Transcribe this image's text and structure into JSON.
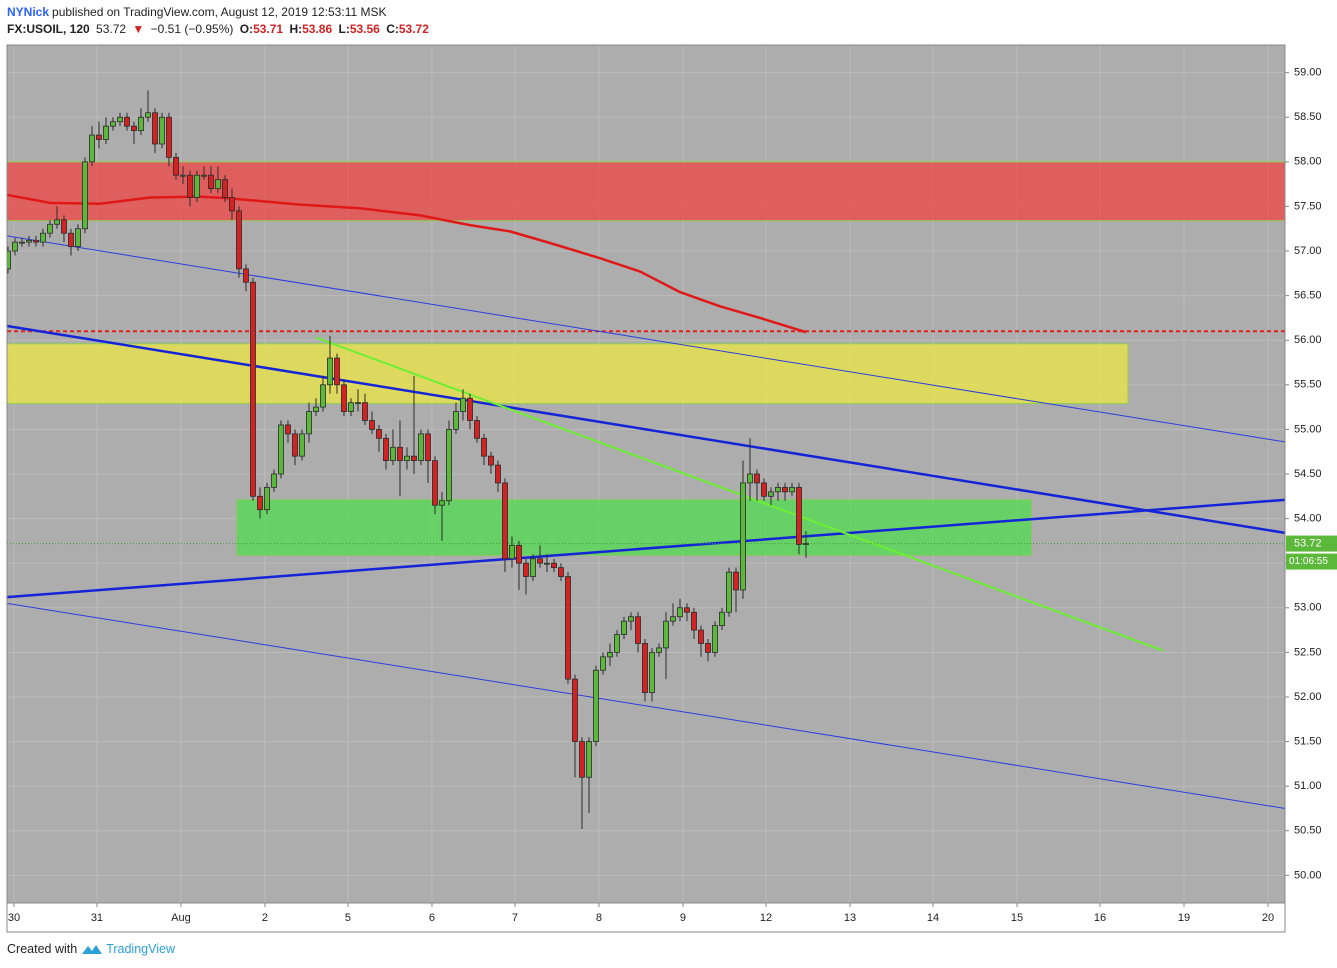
{
  "header": {
    "author": "NYNick",
    "published": "published on TradingView.com, August 12, 2019 12:53:11 MSK",
    "symbol": "FX:USOIL, 120",
    "last": "53.72",
    "arrow": "▼",
    "change": "−0.51 (−0.95%)",
    "o_label": "O:",
    "o": "53.71",
    "h_label": "H:",
    "h": "53.86",
    "l_label": "L:",
    "l": "53.56",
    "c_label": "C:",
    "c": "53.72"
  },
  "footer": {
    "created": "Created with",
    "brand": "TradingView"
  },
  "chart_data": {
    "type": "candlestick",
    "x": [
      0,
      1,
      2,
      3,
      4,
      5,
      6,
      7,
      8,
      9,
      10,
      11,
      12,
      13,
      14,
      15,
      16,
      17,
      18,
      19,
      20,
      21,
      22,
      23,
      24,
      25,
      26,
      27,
      28,
      29,
      30,
      31,
      32,
      33,
      34,
      35,
      36,
      37,
      38,
      39,
      40,
      41,
      42,
      43,
      44,
      45,
      46,
      47,
      48,
      49,
      50,
      51,
      52,
      53,
      54,
      55,
      56,
      57,
      58,
      59,
      60,
      61,
      62,
      63,
      64,
      65,
      66,
      67,
      68,
      69,
      70,
      71,
      72,
      73,
      74,
      75,
      76,
      77,
      78,
      79,
      80,
      81,
      82,
      83,
      84,
      85,
      86,
      87,
      88,
      89,
      90,
      91,
      92,
      93,
      94,
      95,
      96,
      97,
      98,
      99,
      100,
      101,
      102,
      103,
      104,
      105,
      106,
      107,
      108,
      109,
      110,
      111,
      112,
      113,
      114
    ],
    "open": [
      56.8,
      57.0,
      57.1,
      57.1,
      57.12,
      57.1,
      57.2,
      57.3,
      57.35,
      57.2,
      57.05,
      57.25,
      58.0,
      58.3,
      58.25,
      58.4,
      58.45,
      58.5,
      58.4,
      58.35,
      58.5,
      58.55,
      58.2,
      58.5,
      58.05,
      57.85,
      57.85,
      57.6,
      57.85,
      57.85,
      57.7,
      57.8,
      57.6,
      57.45,
      56.8,
      56.65,
      54.25,
      54.1,
      54.35,
      54.5,
      55.05,
      54.95,
      54.7,
      54.95,
      55.2,
      55.25,
      55.5,
      55.8,
      55.5,
      55.2,
      55.3,
      55.3,
      55.1,
      55.0,
      54.9,
      54.65,
      54.8,
      54.65,
      54.7,
      54.65,
      54.95,
      54.65,
      54.15,
      54.2,
      55.0,
      55.2,
      55.35,
      55.1,
      54.9,
      54.7,
      54.6,
      54.4,
      53.55,
      53.7,
      53.5,
      53.35,
      53.55,
      53.5,
      53.5,
      53.45,
      53.35,
      52.2,
      51.5,
      51.1,
      51.5,
      52.3,
      52.45,
      52.5,
      52.7,
      52.85,
      52.9,
      52.6,
      52.05,
      52.5,
      52.55,
      52.85,
      52.9,
      53.0,
      52.95,
      52.75,
      52.6,
      52.5,
      52.8,
      52.95,
      53.4,
      53.2,
      54.4,
      54.5,
      54.4,
      54.25,
      54.3,
      54.35,
      54.3,
      54.35,
      53.71
    ],
    "high": [
      57.05,
      57.15,
      57.15,
      57.17,
      57.17,
      57.25,
      57.35,
      57.5,
      57.4,
      57.25,
      57.3,
      58.05,
      58.4,
      58.45,
      58.5,
      58.5,
      58.55,
      58.55,
      58.45,
      58.6,
      58.8,
      58.6,
      58.55,
      58.55,
      58.1,
      57.95,
      57.9,
      57.9,
      57.95,
      57.95,
      57.95,
      57.85,
      57.7,
      57.5,
      56.85,
      56.7,
      54.35,
      54.4,
      54.55,
      55.1,
      55.1,
      55.0,
      55.0,
      55.3,
      55.35,
      55.6,
      56.05,
      55.85,
      55.55,
      55.35,
      55.45,
      55.4,
      55.2,
      55.05,
      54.95,
      55.0,
      55.1,
      54.8,
      55.6,
      55.0,
      55.0,
      54.7,
      54.3,
      55.1,
      55.3,
      55.45,
      55.4,
      55.15,
      54.95,
      54.75,
      54.65,
      54.45,
      53.8,
      53.75,
      53.55,
      53.6,
      53.7,
      53.6,
      53.55,
      53.5,
      53.4,
      52.25,
      51.55,
      51.55,
      52.35,
      52.5,
      52.6,
      52.75,
      52.9,
      52.95,
      52.95,
      52.65,
      52.55,
      52.6,
      52.95,
      53.05,
      53.1,
      53.05,
      53.0,
      52.8,
      52.65,
      52.85,
      53.0,
      53.45,
      53.45,
      54.65,
      54.9,
      54.55,
      54.45,
      54.35,
      54.4,
      54.4,
      54.4,
      54.4,
      53.86
    ],
    "low": [
      56.75,
      56.95,
      57.05,
      57.05,
      57.05,
      57.05,
      57.15,
      57.25,
      57.1,
      56.95,
      57.0,
      57.2,
      57.95,
      58.15,
      58.2,
      58.35,
      58.4,
      58.35,
      58.2,
      58.3,
      58.45,
      58.1,
      58.15,
      57.95,
      57.8,
      57.75,
      57.5,
      57.55,
      57.8,
      57.65,
      57.65,
      57.55,
      57.35,
      56.7,
      56.55,
      54.2,
      54.0,
      54.05,
      54.3,
      54.45,
      54.85,
      54.6,
      54.65,
      54.85,
      55.15,
      55.2,
      55.4,
      55.4,
      55.15,
      55.15,
      55.2,
      55.05,
      54.95,
      54.75,
      54.55,
      54.6,
      54.25,
      54.55,
      54.5,
      54.6,
      54.4,
      54.05,
      53.75,
      54.15,
      54.95,
      55.1,
      55.0,
      54.85,
      54.6,
      54.5,
      54.3,
      53.4,
      53.45,
      53.2,
      53.15,
      53.3,
      53.45,
      53.4,
      53.4,
      53.3,
      52.15,
      51.1,
      50.52,
      50.7,
      51.45,
      52.25,
      52.35,
      52.45,
      52.65,
      52.75,
      52.5,
      51.95,
      51.95,
      52.45,
      52.2,
      52.8,
      52.85,
      52.85,
      52.65,
      52.45,
      52.4,
      52.45,
      52.75,
      52.9,
      52.95,
      53.1,
      54.2,
      54.2,
      54.2,
      54.15,
      54.2,
      54.2,
      54.25,
      53.6,
      53.56
    ],
    "close": [
      57.0,
      57.1,
      57.1,
      57.12,
      57.1,
      57.2,
      57.3,
      57.35,
      57.2,
      57.05,
      57.25,
      58.0,
      58.3,
      58.25,
      58.4,
      58.45,
      58.5,
      58.4,
      58.35,
      58.5,
      58.55,
      58.2,
      58.5,
      58.05,
      57.85,
      57.85,
      57.6,
      57.85,
      57.85,
      57.7,
      57.8,
      57.6,
      57.45,
      56.8,
      56.65,
      54.25,
      54.1,
      54.35,
      54.5,
      55.05,
      54.95,
      54.7,
      54.95,
      55.2,
      55.25,
      55.5,
      55.8,
      55.5,
      55.2,
      55.3,
      55.3,
      55.1,
      55.0,
      54.9,
      54.65,
      54.8,
      54.65,
      54.7,
      54.65,
      54.95,
      54.65,
      54.15,
      54.2,
      55.0,
      55.2,
      55.35,
      55.1,
      54.9,
      54.7,
      54.6,
      54.4,
      53.55,
      53.7,
      53.5,
      53.35,
      53.55,
      53.5,
      53.5,
      53.45,
      53.35,
      52.2,
      51.5,
      51.1,
      51.5,
      52.3,
      52.45,
      52.5,
      52.7,
      52.85,
      52.9,
      52.6,
      52.05,
      52.5,
      52.55,
      52.85,
      52.9,
      53.0,
      52.95,
      52.75,
      52.6,
      52.5,
      52.8,
      52.95,
      53.4,
      53.2,
      54.4,
      54.5,
      54.4,
      54.25,
      54.3,
      54.35,
      54.3,
      54.35,
      53.71,
      53.72
    ],
    "up_color": "#5cb83a",
    "down_color": "#d32222",
    "wick_color": "#2b2b2b",
    "background": "#adadad",
    "grid": true,
    "grid_color": "#bcbcbc",
    "xlim": [
      -0.14,
      182.43
    ],
    "xticks": [
      {
        "value": 0.86,
        "label": "30"
      },
      {
        "value": 12.71,
        "label": "31"
      },
      {
        "value": 24.71,
        "label": "Aug"
      },
      {
        "value": 36.71,
        "label": "2"
      },
      {
        "value": 48.57,
        "label": "5"
      },
      {
        "value": 60.57,
        "label": "6"
      },
      {
        "value": 72.43,
        "label": "7"
      },
      {
        "value": 84.43,
        "label": "8"
      },
      {
        "value": 96.43,
        "label": "9"
      },
      {
        "value": 108.29,
        "label": "12"
      },
      {
        "value": 120.29,
        "label": "13"
      },
      {
        "value": 132.14,
        "label": "14"
      },
      {
        "value": 144.14,
        "label": "15"
      },
      {
        "value": 156,
        "label": "16"
      },
      {
        "value": 168,
        "label": "19"
      },
      {
        "value": 180,
        "label": "20"
      }
    ],
    "ylim": [
      49.69,
      59.31
    ],
    "yticks": [
      {
        "value": 50,
        "label": "50.00"
      },
      {
        "value": 50.5,
        "label": "50.50"
      },
      {
        "value": 51,
        "label": "51.00"
      },
      {
        "value": 51.5,
        "label": "51.50"
      },
      {
        "value": 52,
        "label": "52.00"
      },
      {
        "value": 52.5,
        "label": "52.50"
      },
      {
        "value": 53,
        "label": "53.00"
      },
      {
        "value": 53.5,
        "label": "53.50"
      },
      {
        "value": 54,
        "label": "54.00"
      },
      {
        "value": 54.5,
        "label": "54.50"
      },
      {
        "value": 55,
        "label": "55.00"
      },
      {
        "value": 55.5,
        "label": "55.50"
      },
      {
        "value": 56,
        "label": "56.00"
      },
      {
        "value": 56.5,
        "label": "56.50"
      },
      {
        "value": 57,
        "label": "57.00"
      },
      {
        "value": 57.5,
        "label": "57.50"
      },
      {
        "value": 58,
        "label": "58.00"
      },
      {
        "value": 58.5,
        "label": "58.50"
      },
      {
        "value": 59,
        "label": "59.00"
      }
    ],
    "countdown": "01:06:55",
    "zones": [
      {
        "x": [
          -0.14,
          182.43
        ],
        "y": [
          57.34,
          58.0
        ],
        "color": "rgba(240,70,70,0.75)",
        "border": "#8fd14f"
      },
      {
        "x": [
          -0.14,
          160
        ],
        "y": [
          55.29,
          55.96
        ],
        "color": "rgba(240,235,60,0.7)",
        "border": "#8fd14f"
      },
      {
        "x": [
          32.71,
          146.14
        ],
        "y": [
          53.59,
          54.21
        ],
        "color": "rgba(80,220,80,0.75)",
        "border": "#7ccf4f"
      }
    ],
    "trendlines": [
      {
        "x": [
          -0.14,
          182.43
        ],
        "y": [
          57.17,
          54.86
        ],
        "color": "#2b3ee0",
        "width": 1
      },
      {
        "x": [
          -0.14,
          182.43
        ],
        "y": [
          56.16,
          53.84
        ],
        "color": "#1424d8",
        "width": 2.5
      },
      {
        "x": [
          -0.14,
          182.43
        ],
        "y": [
          53.12,
          54.21
        ],
        "color": "#1424d8",
        "width": 2.5
      },
      {
        "x": [
          -0.14,
          182.43
        ],
        "y": [
          53.05,
          50.75
        ],
        "color": "#2b3ee0",
        "width": 1
      },
      {
        "x": [
          44,
          165
        ],
        "y": [
          56.03,
          52.52
        ],
        "color": "#6cf032",
        "width": 2
      }
    ],
    "hlines": [
      {
        "value": 56.1,
        "color": "#e02020",
        "dash": true
      }
    ],
    "moving_average": {
      "color": "#e01818",
      "x": [
        -0.14,
        6,
        13.14,
        20.29,
        27.43,
        31.71,
        41.71,
        50.29,
        58.86,
        66,
        71.71,
        77.43,
        84.57,
        90.29,
        96,
        101.71,
        107.43,
        114
      ],
      "values": [
        57.63,
        57.54,
        57.53,
        57.6,
        57.61,
        57.59,
        57.52,
        57.48,
        57.4,
        57.29,
        57.22,
        57.09,
        56.92,
        56.77,
        56.54,
        56.38,
        56.25,
        56.09
      ]
    }
  }
}
